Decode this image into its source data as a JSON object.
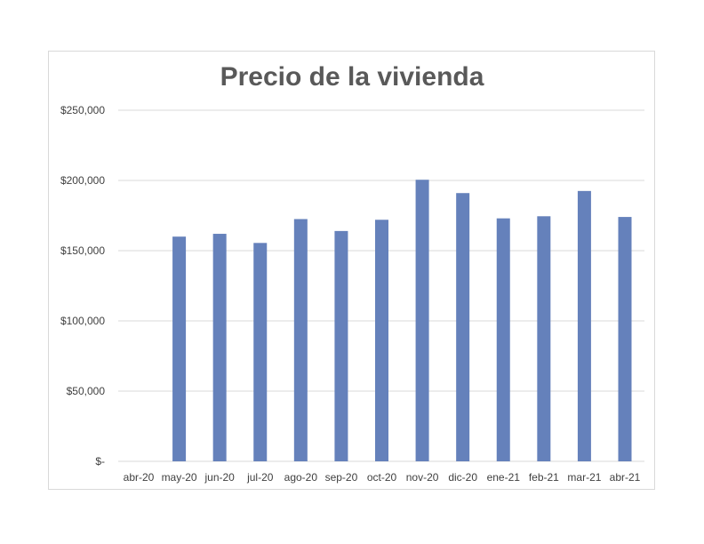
{
  "chart_data": {
    "type": "bar",
    "title": "Precio de la vivienda",
    "categories": [
      "abr-20",
      "may-20",
      "jun-20",
      "jul-20",
      "ago-20",
      "sep-20",
      "oct-20",
      "nov-20",
      "dic-20",
      "ene-21",
      "feb-21",
      "mar-21",
      "abr-21"
    ],
    "series": [
      {
        "values": [
          0,
          160000,
          162000,
          155500,
          172500,
          164000,
          172000,
          200500,
          191000,
          173000,
          174500,
          192500,
          174000
        ]
      }
    ],
    "y_tick_labels": [
      "$-",
      "$50,000",
      "$100,000",
      "$150,000",
      "$200,000",
      "$250,000"
    ],
    "y_ticks": [
      0,
      50000,
      100000,
      150000,
      200000,
      250000
    ],
    "ylim": [
      0,
      250000
    ],
    "grid": true,
    "legend": "none",
    "bar_color": "#6581bb",
    "grid_color": "#d9d9d9"
  }
}
